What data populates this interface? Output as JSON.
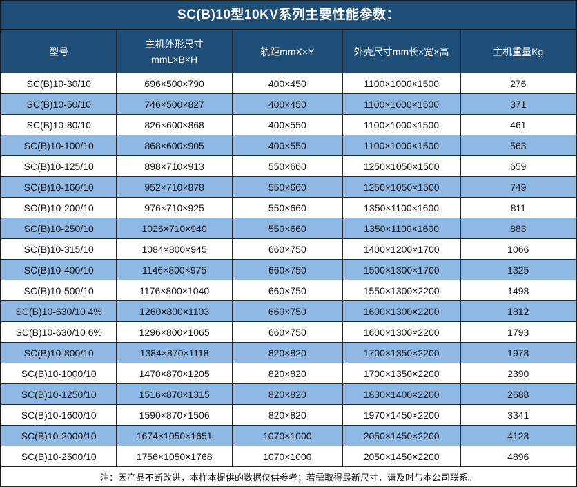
{
  "title": "SC(B)10型10KV系列主要性能参数：",
  "colors": {
    "header_bg": "#1F4E79",
    "alt_row_bg": "#8FB9E4",
    "grid_border": "#262626",
    "header_text": "#ffffff",
    "body_text": "#151515"
  },
  "table": {
    "columns": [
      {
        "label": "型号"
      },
      {
        "label": "主机外形尺寸",
        "label2": "mmL×B×H"
      },
      {
        "label": "轨距mmX×Y"
      },
      {
        "label": "外壳尺寸mm长×宽×高"
      },
      {
        "label": "主机重量Kg"
      }
    ],
    "rows": [
      [
        "SC(B)10-30/10",
        "696×500×790",
        "400×450",
        "1100×1000×1500",
        "276"
      ],
      [
        "SC(B)10-50/10",
        "746×500×827",
        "400×450",
        "1100×1000×1500",
        "371"
      ],
      [
        "SC(B)10-80/10",
        "826×600×868",
        "400×550",
        "1100×1000×1500",
        "461"
      ],
      [
        "SC(B)10-100/10",
        "868×600×905",
        "400×550",
        "1100×1000×1500",
        "563"
      ],
      [
        "SC(B)10-125/10",
        "898×710×913",
        "550×660",
        "1250×1050×1500",
        "659"
      ],
      [
        "SC(B)10-160/10",
        "952×710×878",
        "550×660",
        "1250×1050×1500",
        "749"
      ],
      [
        "SC(B)10-200/10",
        "976×710×925",
        "550×660",
        "1350×1100×1600",
        "811"
      ],
      [
        "SC(B)10-250/10",
        "1026×710×940",
        "550×660",
        "1350×1100×1600",
        "883"
      ],
      [
        "SC(B)10-315/10",
        "1084×800×945",
        "660×750",
        "1400×1200×1700",
        "1066"
      ],
      [
        "SC(B)10-400/10",
        "1146×800×975",
        "660×750",
        "1500×1300×1700",
        "1325"
      ],
      [
        "SC(B)10-500/10",
        "1176×800×1040",
        "660×750",
        "1550×1300×2200",
        "1498"
      ],
      [
        "SC(B)10-630/10 4%",
        "1260×800×1103",
        "660×750",
        "1600×1300×2200",
        "1812"
      ],
      [
        "SC(B)10-630/10 6%",
        "1296×800×1065",
        "660×750",
        "1600×1300×2200",
        "1793"
      ],
      [
        "SC(B)10-800/10",
        "1384×870×1118",
        "820×820",
        "1700×1350×2200",
        "1978"
      ],
      [
        "SC(B)10-1000/10",
        "1470×870×1205",
        "820×820",
        "1700×1350×2200",
        "2390"
      ],
      [
        "SC(B)10-1250/10",
        "1516×870×1315",
        "820×820",
        "1830×1400×2200",
        "2688"
      ],
      [
        "SC(B)10-1600/10",
        "1590×870×1506",
        "820×820",
        "1970×1450×2200",
        "3341"
      ],
      [
        "SC(B)10-2000/10",
        "1674×1050×1651",
        "1070×1000",
        "2050×1450×2200",
        "4128"
      ],
      [
        "SC(B)10-2500/10",
        "1756×1050×1768",
        "1070×1000",
        "2050×1450×2200",
        "4896"
      ]
    ],
    "note": "注：因产品不断改进，本样本提供的数据仅供参考；若需取得最新尺寸，请及时与本公司联系。"
  }
}
